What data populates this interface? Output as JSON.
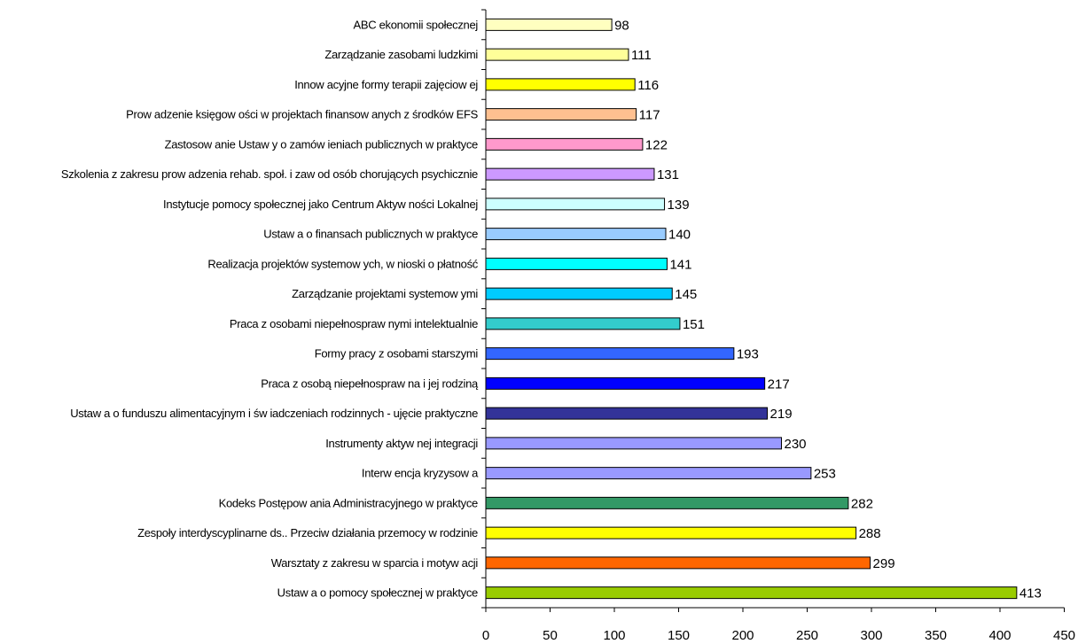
{
  "chart_data": {
    "type": "bar",
    "orientation": "horizontal",
    "title": "",
    "xlabel": "",
    "ylabel": "",
    "xlim": [
      0,
      450
    ],
    "x_ticks": [
      0,
      50,
      100,
      150,
      200,
      250,
      300,
      350,
      400,
      450
    ],
    "grid": false,
    "legend": "none",
    "categories": [
      "ABC ekonomii społecznej",
      "Zarządzanie zasobami ludzkimi",
      "Innow acyjne formy terapii zajęciow ej",
      "Prow adzenie księgow ości w  projektach finansow anych z środków  EFS",
      "Zastosow anie Ustaw y o zamów ieniach publicznych w  praktyce",
      "Szkolenia z zakresu prow adzenia rehab. społ. i zaw od osób chorujących psychicznie",
      "Instytucje pomocy społecznej jako Centrum Aktyw ności Lokalnej",
      "Ustaw a o finansach publicznych w  praktyce",
      "Realizacja projektów  systemow ych, w nioski o płatność",
      "Zarządzanie projektami systemow ymi",
      "Praca z osobami niepełnospraw nymi intelektualnie",
      "Formy pracy z osobami starszymi",
      "Praca z osobą niepełnospraw na i jej rodziną",
      "Ustaw a o funduszu alimentacyjnym i św iadczeniach rodzinnych - ujęcie praktyczne",
      "Instrumenty aktyw nej integracji",
      "Interw encja kryzysow a",
      "Kodeks Postępow ania Administracyjnego w  praktyce",
      "Zespoły interdyscyplinarne ds.. Przeciw działania przemocy w  rodzinie",
      "Warsztaty z zakresu w sparcia i motyw acji",
      "Ustaw a o pomocy społecznej w  praktyce"
    ],
    "values": [
      98,
      111,
      116,
      117,
      122,
      131,
      139,
      140,
      141,
      145,
      151,
      193,
      217,
      219,
      230,
      253,
      282,
      288,
      299,
      413
    ],
    "colors": [
      "#FFFFC0",
      "#FFFF99",
      "#FFFF00",
      "#FFC090",
      "#FF99CC",
      "#CC99FF",
      "#CCFFFF",
      "#99CCFF",
      "#00FFFF",
      "#00CCFF",
      "#33CCCC",
      "#3366FF",
      "#0000FF",
      "#333399",
      "#9999FF",
      "#9999FF",
      "#339966",
      "#FFFF00",
      "#FF6600",
      "#99CC00"
    ],
    "data_labels": [
      "98",
      "111",
      "116",
      "117",
      "122",
      "131",
      "139",
      "140",
      "141",
      "145",
      "151",
      "193",
      "217",
      "219",
      "230",
      "253",
      "282",
      "288",
      "299",
      "413"
    ]
  }
}
